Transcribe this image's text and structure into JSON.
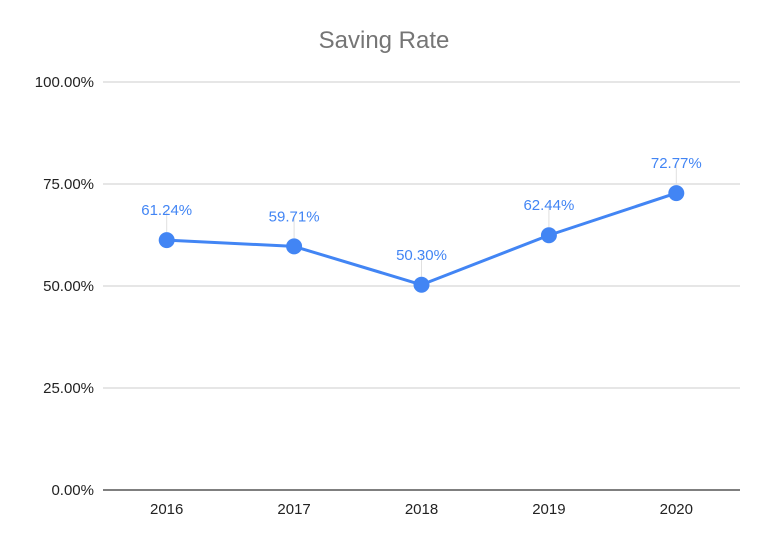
{
  "chart_data": {
    "type": "line",
    "title": "Saving Rate",
    "xlabel": "",
    "ylabel": "",
    "categories": [
      "2016",
      "2017",
      "2018",
      "2019",
      "2020"
    ],
    "series": [
      {
        "name": "Saving Rate",
        "values": [
          61.24,
          59.71,
          50.3,
          62.44,
          72.77
        ],
        "labels": [
          "61.24%",
          "59.71%",
          "50.30%",
          "62.44%",
          "72.77%"
        ]
      }
    ],
    "ylim": [
      0,
      100
    ],
    "yticks": [
      0,
      25,
      50,
      75,
      100
    ],
    "ytick_labels": [
      "0.00%",
      "25.00%",
      "50.00%",
      "75.00%",
      "100.00%"
    ],
    "grid": true,
    "legend": "none",
    "color": "#4285f4"
  }
}
